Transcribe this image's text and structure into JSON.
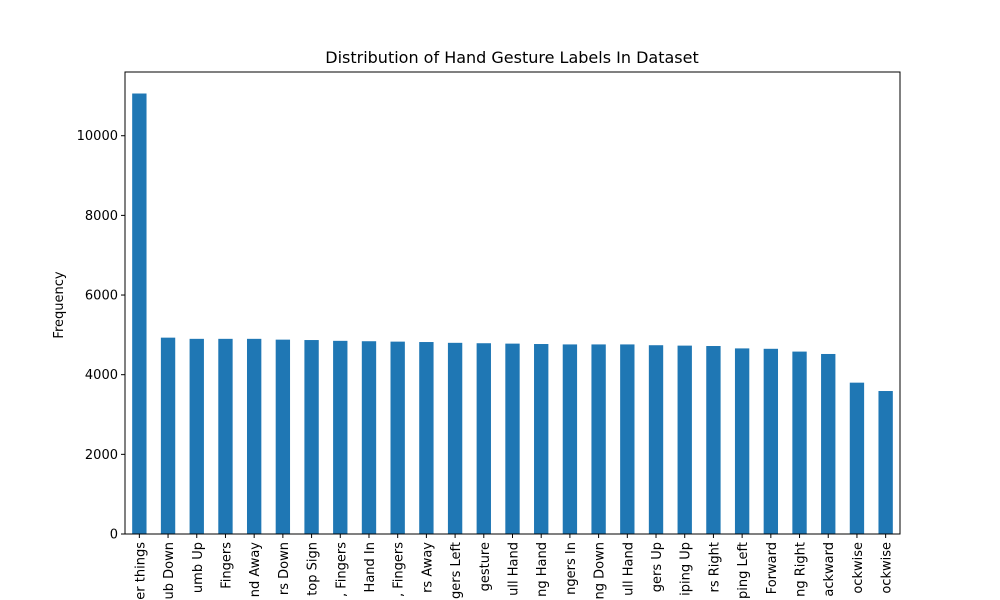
{
  "chart_data": {
    "type": "bar",
    "title": "Distribution of Hand Gesture Labels In Dataset",
    "xlabel": "",
    "ylabel": "Frequency",
    "ylim": [
      0,
      11600
    ],
    "yticks": [
      0,
      2000,
      4000,
      6000,
      8000,
      10000
    ],
    "yticklabels": [
      "0",
      "2000",
      "4000",
      "6000",
      "8000",
      "10000"
    ],
    "grid": false,
    "legend": "none",
    "bar_color": "#1f77b4",
    "categories": [
      "er things",
      "ub Down",
      "umb Up",
      "Fingers",
      "nd Away",
      "rs Down",
      "top Sign",
      ", Fingers",
      "Hand In",
      ", Fingers",
      "rs Away",
      "gers Left",
      "gesture",
      "ull Hand",
      "ng Hand",
      "ngers In",
      "ng Down",
      "ull Hand",
      "gers Up",
      "iping Up",
      "rs Right",
      "ping Left",
      "Forward",
      "ng Right",
      "ackward",
      "ockwise",
      "ockwise"
    ],
    "values": [
      11060,
      4930,
      4900,
      4900,
      4900,
      4880,
      4870,
      4850,
      4840,
      4830,
      4820,
      4800,
      4790,
      4780,
      4770,
      4760,
      4760,
      4760,
      4740,
      4730,
      4720,
      4660,
      4650,
      4580,
      4520,
      3800,
      3590
    ]
  }
}
